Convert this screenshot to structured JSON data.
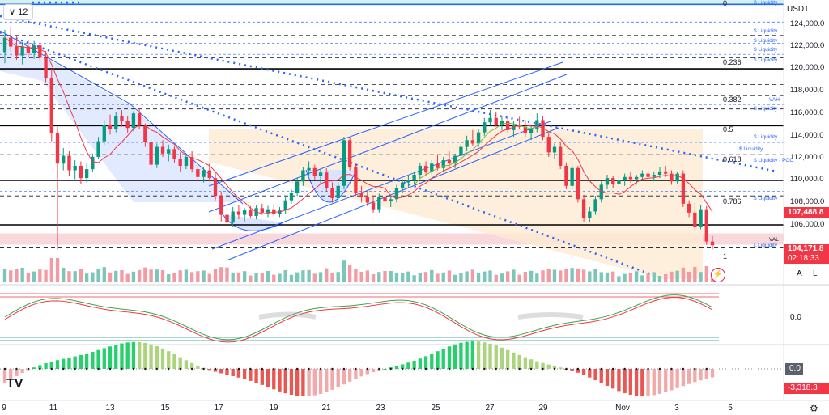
{
  "toolbar": {
    "interval_label": "12",
    "interval_icon": "chevron-down-icon"
  },
  "price_axis": {
    "currency": "USDT",
    "ticks": [
      "124,000.0",
      "122,000.0",
      "120,000.0",
      "118,000.0",
      "116,000.0",
      "114,000.0",
      "112,000.0",
      "110,000.0",
      "108,000.0",
      "106,000.0"
    ]
  },
  "price_tags": {
    "last_price": "104,171.8",
    "countdown": "02:18:33",
    "ma_value": "107,488.8",
    "colors": {
      "last_price": "#f23645",
      "ma": "#f23645"
    }
  },
  "time_axis": {
    "labels": [
      "9",
      "11",
      "13",
      "15",
      "17",
      "19",
      "21",
      "23",
      "25",
      "27",
      "29",
      "Nov",
      "3",
      "5"
    ]
  },
  "fib_levels": [
    "0",
    "0.236",
    "0.382",
    "0.5",
    "0.618",
    "0.786",
    "1"
  ],
  "annotations": {
    "vah": "VAH",
    "val": "VAL",
    "liquidity": [
      "$ Liquidity",
      "$ Liquidity",
      "$ Liquidity",
      "$ Liquidity",
      "$ Liquidity",
      "$ Liquidity",
      "$ Liquidity",
      "$ Liquidity",
      "$ Liquidity - POC",
      "$ Liquidity",
      "$ Liquidity",
      "L Liquidity"
    ]
  },
  "scale_buttons": {
    "auto": "A",
    "log": "L"
  },
  "indicators": {
    "oscillator_value": "0.0",
    "histogram_zero": "0.0",
    "histogram_value": "-3,318.3"
  },
  "branding": {
    "logo_text": "TV"
  },
  "chart_data": {
    "type": "candlestick",
    "title": "",
    "timeframe": "12",
    "currency": "USDT",
    "x_labels": [
      "9",
      "11",
      "13",
      "15",
      "17",
      "19",
      "21",
      "23",
      "25",
      "27",
      "29",
      "Nov",
      "3",
      "5"
    ],
    "ylim": [
      103000,
      126000
    ],
    "candles": [
      [
        121500,
        123500,
        120500,
        122800
      ],
      [
        122800,
        123800,
        121600,
        122000
      ],
      [
        122000,
        122900,
        120800,
        121200
      ],
      [
        121200,
        122400,
        120400,
        122000
      ],
      [
        122000,
        122600,
        121000,
        121400
      ],
      [
        121400,
        122500,
        120900,
        122100
      ],
      [
        122100,
        122400,
        120700,
        121000
      ],
      [
        121000,
        121600,
        118800,
        119200
      ],
      [
        119200,
        120000,
        113500,
        114200
      ],
      [
        114200,
        114800,
        103800,
        111500
      ],
      [
        111500,
        112900,
        110900,
        112200
      ],
      [
        112200,
        112600,
        110400,
        110900
      ],
      [
        110900,
        111800,
        110100,
        111300
      ],
      [
        111300,
        111700,
        109700,
        110200
      ],
      [
        110200,
        111500,
        109800,
        111000
      ],
      [
        111000,
        112400,
        110800,
        112100
      ],
      [
        112100,
        113900,
        111900,
        113500
      ],
      [
        113500,
        115400,
        113200,
        115000
      ],
      [
        115000,
        115900,
        114100,
        114600
      ],
      [
        114600,
        116100,
        114300,
        115800
      ],
      [
        115800,
        116300,
        114800,
        115300
      ],
      [
        115300,
        115800,
        114200,
        114700
      ],
      [
        114700,
        116200,
        114400,
        116000
      ],
      [
        116000,
        116400,
        114600,
        114900
      ],
      [
        114900,
        115100,
        113000,
        113400
      ],
      [
        113400,
        113700,
        111000,
        111400
      ],
      [
        111400,
        113300,
        111100,
        113000
      ],
      [
        113000,
        113600,
        112100,
        112400
      ],
      [
        112400,
        113200,
        111700,
        112800
      ],
      [
        112800,
        113100,
        111600,
        111900
      ],
      [
        111900,
        112500,
        110800,
        111300
      ],
      [
        111300,
        112400,
        111000,
        112100
      ],
      [
        112100,
        112600,
        110700,
        111000
      ],
      [
        111000,
        111600,
        109900,
        110300
      ],
      [
        110300,
        111200,
        109800,
        110900
      ],
      [
        110900,
        111500,
        109900,
        110200
      ],
      [
        110200,
        110800,
        108200,
        108600
      ],
      [
        108600,
        109000,
        106300,
        106900
      ],
      [
        106900,
        107800,
        105700,
        106200
      ],
      [
        106200,
        107600,
        105800,
        107200
      ],
      [
        107200,
        107800,
        106500,
        106900
      ],
      [
        106900,
        107500,
        106300,
        107300
      ],
      [
        107300,
        107700,
        106600,
        106800
      ],
      [
        106800,
        107800,
        106500,
        107500
      ],
      [
        107500,
        107900,
        106900,
        107100
      ],
      [
        107100,
        107700,
        106700,
        107400
      ],
      [
        107400,
        107900,
        106800,
        107000
      ],
      [
        107000,
        107600,
        106700,
        107300
      ],
      [
        107300,
        108500,
        107000,
        108200
      ],
      [
        108200,
        109200,
        107900,
        108900
      ],
      [
        108900,
        110200,
        108600,
        109900
      ],
      [
        109900,
        111200,
        109500,
        110900
      ],
      [
        110900,
        111700,
        110400,
        111100
      ],
      [
        111100,
        111400,
        110000,
        110400
      ],
      [
        110400,
        111000,
        109600,
        110700
      ],
      [
        110700,
        111100,
        109000,
        109300
      ],
      [
        109300,
        109800,
        108000,
        108400
      ],
      [
        108400,
        109800,
        108100,
        109500
      ],
      [
        109500,
        113900,
        109200,
        113600
      ],
      [
        113600,
        113800,
        110900,
        111200
      ],
      [
        111200,
        111500,
        108600,
        108900
      ],
      [
        108900,
        109500,
        108000,
        108500
      ],
      [
        108500,
        109100,
        107700,
        108000
      ],
      [
        108000,
        108600,
        107100,
        107400
      ],
      [
        107400,
        108800,
        107100,
        108500
      ],
      [
        108500,
        109300,
        107800,
        108100
      ],
      [
        108100,
        108600,
        107600,
        108300
      ],
      [
        108300,
        109600,
        108000,
        109300
      ],
      [
        109300,
        110100,
        108900,
        109800
      ],
      [
        109800,
        110400,
        109300,
        110000
      ],
      [
        110000,
        110800,
        109600,
        110500
      ],
      [
        110500,
        111600,
        110200,
        111300
      ],
      [
        111300,
        111700,
        110500,
        110800
      ],
      [
        110800,
        111800,
        110500,
        111500
      ],
      [
        111500,
        112300,
        110900,
        111100
      ],
      [
        111100,
        112100,
        110800,
        111800
      ],
      [
        111800,
        112600,
        111200,
        111500
      ],
      [
        111500,
        112400,
        111100,
        112200
      ],
      [
        112200,
        113300,
        111900,
        113000
      ],
      [
        113000,
        114000,
        112600,
        113600
      ],
      [
        113600,
        114500,
        113100,
        113300
      ],
      [
        113300,
        114600,
        113000,
        114300
      ],
      [
        114300,
        115600,
        114000,
        115200
      ],
      [
        115200,
        116300,
        114900,
        115600
      ],
      [
        115600,
        116100,
        114800,
        115000
      ],
      [
        115000,
        115700,
        114500,
        115300
      ],
      [
        115300,
        115600,
        114200,
        114500
      ],
      [
        114500,
        115300,
        113900,
        115000
      ],
      [
        115000,
        115700,
        114600,
        114800
      ],
      [
        114800,
        115400,
        113900,
        114200
      ],
      [
        114200,
        114900,
        113600,
        114600
      ],
      [
        114600,
        116000,
        114300,
        115400
      ],
      [
        115400,
        115800,
        113600,
        113900
      ],
      [
        113900,
        114200,
        112100,
        112500
      ],
      [
        112500,
        113300,
        111900,
        113000
      ],
      [
        113000,
        113400,
        111000,
        111300
      ],
      [
        111300,
        111600,
        109200,
        109500
      ],
      [
        109500,
        111400,
        109200,
        111100
      ],
      [
        111100,
        111300,
        108000,
        108300
      ],
      [
        108300,
        108700,
        106300,
        106600
      ],
      [
        106600,
        107600,
        106200,
        107200
      ],
      [
        107200,
        108600,
        106900,
        108300
      ],
      [
        108300,
        109900,
        108000,
        109600
      ],
      [
        109600,
        110500,
        109200,
        110200
      ],
      [
        110200,
        110400,
        109300,
        109700
      ],
      [
        109700,
        110300,
        109400,
        110000
      ],
      [
        110000,
        110600,
        109500,
        110300
      ],
      [
        110300,
        110700,
        109800,
        110100
      ],
      [
        110100,
        110500,
        109600,
        110300
      ],
      [
        110300,
        110900,
        110000,
        110600
      ],
      [
        110600,
        111000,
        110100,
        110300
      ],
      [
        110300,
        110800,
        109900,
        110500
      ],
      [
        110500,
        111200,
        110200,
        110800
      ],
      [
        110800,
        111300,
        110300,
        110600
      ],
      [
        110600,
        110900,
        109600,
        109900
      ],
      [
        109900,
        110800,
        109700,
        110600
      ],
      [
        110600,
        110900,
        107600,
        107900
      ],
      [
        107900,
        108200,
        106700,
        107100
      ],
      [
        107100,
        108000,
        105500,
        105800
      ],
      [
        105800,
        107800,
        105600,
        107400
      ],
      [
        107400,
        107700,
        104200,
        104500
      ],
      [
        104500,
        105000,
        103800,
        104171.8
      ]
    ],
    "moving_average_last": 107488.8,
    "last_price": 104171.8,
    "oscillator_zero": 0.0,
    "histogram_last": -3318.3,
    "price_levels": {
      "fib_0": 125800,
      "fib_0_236": 120900,
      "fib_0_382": 117600,
      "fib_0_5": 114900,
      "fib_0_618": 112300,
      "fib_0_786": 108600,
      "fib_1": 104000,
      "vah": 117600,
      "val": 104800,
      "solid_lines": [
        120000,
        114900,
        110000,
        106000
      ]
    },
    "legend": "none",
    "grid": false
  }
}
